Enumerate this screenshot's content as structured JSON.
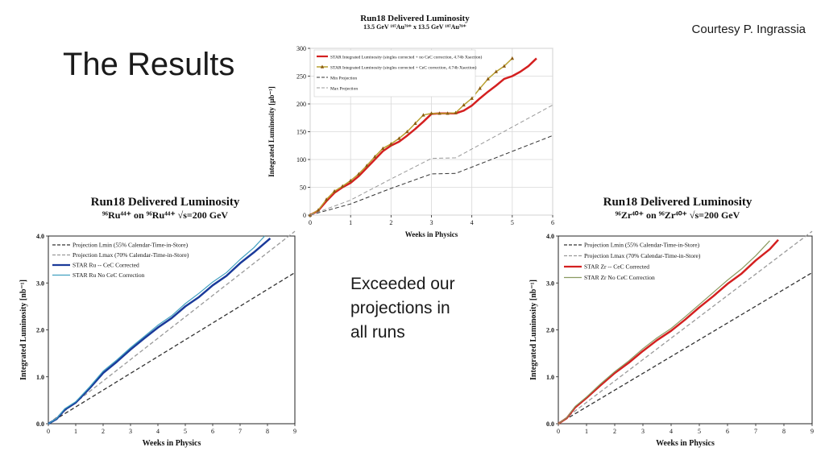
{
  "slide": {
    "title": "The Results",
    "credit": "Courtesy P. Ingrassia",
    "conclusion": [
      "Exceeded our",
      "projections in",
      "all runs"
    ]
  },
  "colors": {
    "star_au_red": "#d42020",
    "star_au_gold": "#b8a030",
    "star_au_marker": "#8b5a10",
    "ru_dark": "#1a3a9a",
    "ru_light": "#40a0c0",
    "zr_red": "#d42020",
    "zr_olive": "#8a9a60",
    "proj_min": "#333333",
    "proj_max": "#999999"
  },
  "chart_data": [
    {
      "id": "au",
      "type": "line",
      "title": "Run18 Delivered Luminosity",
      "subtitle": "13.5 GeV ¹⁹⁷Au⁷⁹⁺ x 13.5 GeV ¹⁹⁷Au⁷⁹⁺",
      "xlabel": "Weeks in Physics",
      "ylabel": "Integrated Luminosity [μb⁻¹]",
      "xlim": [
        0,
        6
      ],
      "ylim": [
        0,
        300
      ],
      "xticks": [
        0,
        1,
        2,
        3,
        4,
        5,
        6
      ],
      "yticks": [
        0,
        50,
        100,
        150,
        200,
        250,
        300
      ],
      "grid": true,
      "legend_position": "top-left",
      "series": [
        {
          "name": "STAR Integrated Luminosity (singles corrected + no CeC correction, 4.74b Xsection)",
          "color": "#d42020",
          "style": "solid",
          "width": 2.5,
          "markers": false,
          "x": [
            0,
            0.2,
            0.4,
            0.6,
            0.8,
            1.0,
            1.2,
            1.4,
            1.6,
            1.8,
            2.0,
            2.2,
            2.4,
            2.6,
            2.8,
            3.0,
            3.2,
            3.4,
            3.6,
            3.8,
            4.0,
            4.2,
            4.4,
            4.6,
            4.8,
            5.0,
            5.2,
            5.4,
            5.6
          ],
          "y": [
            0,
            8,
            25,
            40,
            50,
            58,
            70,
            85,
            100,
            115,
            125,
            132,
            143,
            155,
            168,
            182,
            183,
            183,
            183,
            188,
            197,
            210,
            222,
            233,
            245,
            250,
            258,
            268,
            282
          ]
        },
        {
          "name": "STAR Integrated Luminosity (singles corrected + CeC correction, 4.74b Xsection)",
          "color": "#b8a030",
          "style": "solid",
          "width": 1.5,
          "markers": true,
          "x": [
            0,
            0.2,
            0.4,
            0.6,
            0.8,
            1.0,
            1.2,
            1.4,
            1.6,
            1.8,
            2.0,
            2.2,
            2.4,
            2.6,
            2.8,
            3.0,
            3.2,
            3.4,
            3.6,
            3.8,
            4.0,
            4.2,
            4.4,
            4.6,
            4.8,
            5.0
          ],
          "y": [
            0,
            9,
            28,
            43,
            52,
            62,
            74,
            89,
            105,
            120,
            128,
            138,
            150,
            165,
            180,
            183,
            183,
            183,
            184,
            198,
            210,
            228,
            245,
            258,
            268,
            282
          ]
        },
        {
          "name": "Min Projection",
          "color": "#333333",
          "style": "dashed",
          "width": 1,
          "markers": false,
          "x": [
            0,
            1,
            2,
            3,
            3.6,
            6
          ],
          "y": [
            0,
            20,
            48,
            74,
            75,
            143
          ]
        },
        {
          "name": "Max Projection",
          "color": "#999999",
          "style": "dashed",
          "width": 1,
          "markers": false,
          "x": [
            0,
            1,
            2,
            3,
            3.6,
            6
          ],
          "y": [
            0,
            27,
            65,
            102,
            103,
            198
          ]
        }
      ]
    },
    {
      "id": "ru",
      "type": "line",
      "title": "Run18 Delivered Luminosity",
      "subtitle": "⁹⁶Ru⁴⁴⁺ on ⁹⁶Ru⁴⁴⁺ √s=200 GeV",
      "xlabel": "Weeks in Physics",
      "ylabel": "Integrated Luminosity [nb⁻¹]",
      "xlim": [
        0,
        9
      ],
      "ylim": [
        0,
        4.0
      ],
      "xticks": [
        0,
        1,
        2,
        3,
        4,
        5,
        6,
        7,
        8,
        9
      ],
      "yticks": [
        0.0,
        1.0,
        2.0,
        3.0,
        4.0
      ],
      "ytick_labels": [
        "0.0",
        "1.0",
        "2.0",
        "3.0",
        "4.0"
      ],
      "grid": false,
      "legend_position": "top-left",
      "series": [
        {
          "name": "Projection Lmin (55% Calendar-Time-in-Store)",
          "color": "#333333",
          "style": "dashed",
          "width": 1.3,
          "x": [
            0,
            9
          ],
          "y": [
            0,
            3.22
          ]
        },
        {
          "name": "Projection Lmax (70% Calendar-Time-in-Store)",
          "color": "#999999",
          "style": "dashed",
          "width": 1.3,
          "x": [
            0,
            9
          ],
          "y": [
            0,
            4.1
          ]
        },
        {
          "name": "STAR Ru -- CeC Corrected",
          "color": "#1a3a9a",
          "style": "solid",
          "width": 2.5,
          "x": [
            0,
            0.3,
            0.6,
            1.0,
            1.5,
            2.0,
            2.5,
            3.0,
            3.5,
            4.0,
            4.5,
            5.0,
            5.5,
            6.0,
            6.5,
            7.0,
            7.5,
            8.1
          ],
          "y": [
            0,
            0.1,
            0.3,
            0.45,
            0.75,
            1.08,
            1.32,
            1.58,
            1.82,
            2.05,
            2.25,
            2.5,
            2.7,
            2.95,
            3.15,
            3.42,
            3.65,
            3.95
          ]
        },
        {
          "name": "STAR Ru No CeC Correction",
          "color": "#40a0c0",
          "style": "solid",
          "width": 1.2,
          "x": [
            0,
            0.3,
            0.6,
            1.0,
            1.5,
            2.0,
            2.5,
            3.0,
            3.5,
            4.0,
            4.5,
            5.0,
            5.5,
            6.0,
            6.5,
            7.0,
            7.5,
            7.9
          ],
          "y": [
            0,
            0.11,
            0.32,
            0.47,
            0.78,
            1.12,
            1.36,
            1.62,
            1.86,
            2.1,
            2.3,
            2.56,
            2.78,
            3.02,
            3.22,
            3.5,
            3.75,
            4.0
          ]
        }
      ]
    },
    {
      "id": "zr",
      "type": "line",
      "title": "Run18 Delivered Luminosity",
      "subtitle": "⁹⁶Zr⁴⁰⁺ on ⁹⁶Zr⁴⁰⁺ √s=200 GeV",
      "xlabel": "Weeks in Physics",
      "ylabel": "Integrated Luminosity [nb⁻¹]",
      "xlim": [
        0,
        9
      ],
      "ylim": [
        0,
        4.0
      ],
      "xticks": [
        0,
        1,
        2,
        3,
        4,
        5,
        6,
        7,
        8,
        9
      ],
      "yticks": [
        0.0,
        1.0,
        2.0,
        3.0,
        4.0
      ],
      "ytick_labels": [
        "0.0",
        "1.0",
        "2.0",
        "3.0",
        "4.0"
      ],
      "grid": false,
      "legend_position": "top-left",
      "series": [
        {
          "name": "Projection Lmin (55% Calendar-Time-in-Store)",
          "color": "#333333",
          "style": "dashed",
          "width": 1.3,
          "x": [
            0,
            9
          ],
          "y": [
            0,
            3.22
          ]
        },
        {
          "name": "Projection Lmax (70% Calendar-Time-in-Store)",
          "color": "#999999",
          "style": "dashed",
          "width": 1.3,
          "x": [
            0,
            9
          ],
          "y": [
            0,
            4.1
          ]
        },
        {
          "name": "STAR Zr -- CeC Corrected",
          "color": "#d42020",
          "style": "solid",
          "width": 2.5,
          "x": [
            0,
            0.3,
            0.6,
            1.0,
            1.5,
            2.0,
            2.5,
            3.0,
            3.5,
            4.0,
            4.5,
            5.0,
            5.5,
            6.0,
            6.5,
            7.0,
            7.5,
            7.8
          ],
          "y": [
            0,
            0.12,
            0.35,
            0.55,
            0.82,
            1.08,
            1.3,
            1.55,
            1.78,
            1.98,
            2.22,
            2.48,
            2.72,
            2.98,
            3.2,
            3.48,
            3.72,
            3.92
          ]
        },
        {
          "name": "STAR Zr No CeC Correction",
          "color": "#8a9a60",
          "style": "solid",
          "width": 1.2,
          "x": [
            0,
            0.3,
            0.6,
            1.0,
            1.5,
            2.0,
            2.5,
            3.0,
            3.5,
            4.0,
            4.5,
            5.0,
            5.5,
            6.0,
            6.5,
            7.0,
            7.5
          ],
          "y": [
            0,
            0.13,
            0.37,
            0.57,
            0.85,
            1.11,
            1.34,
            1.6,
            1.83,
            2.03,
            2.28,
            2.54,
            2.8,
            3.06,
            3.3,
            3.58,
            3.9
          ]
        }
      ]
    }
  ]
}
